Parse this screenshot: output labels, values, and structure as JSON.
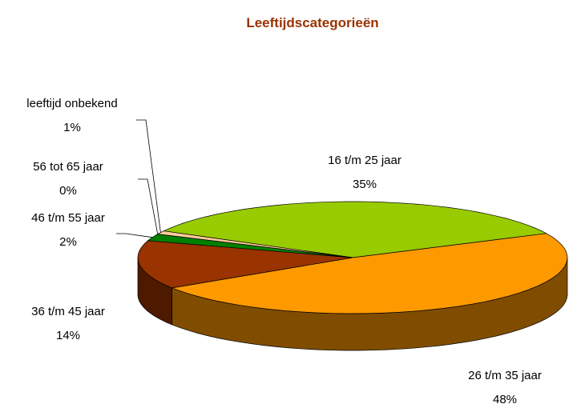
{
  "chart_data": {
    "type": "pie3d",
    "title": "Leeftijdscategorieën",
    "categories": [
      "16 t/m 25 jaar",
      "26 t/m 35 jaar",
      "36 t/m 45 jaar",
      "46 t/m 55 jaar",
      "56 tot 65 jaar",
      "leeftijd onbekend"
    ],
    "values": [
      35,
      48,
      14,
      2,
      0,
      1
    ],
    "value_labels": [
      "35%",
      "48%",
      "14%",
      "2%",
      "0%",
      "1%"
    ],
    "colors": [
      "#99cc00",
      "#ff9900",
      "#993300",
      "#008000",
      "#ff99cc",
      "#ffcc99"
    ]
  }
}
